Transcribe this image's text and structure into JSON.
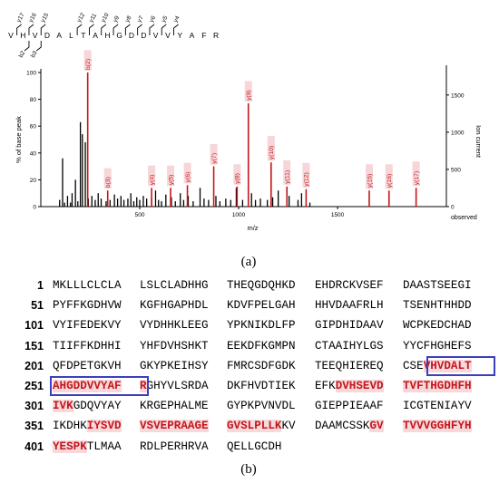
{
  "chart_data": {
    "type": "bar",
    "title": "",
    "peptide": "VHVDALTAHGDDVVYAFR",
    "peptide_letters": [
      "V",
      "H",
      "V",
      "D",
      "A",
      "L",
      "T",
      "A",
      "H",
      "G",
      "D",
      "D",
      "V",
      "V",
      "Y",
      "A",
      "F",
      "R"
    ],
    "y_ion_labels": [
      "y17",
      "y16",
      "y15",
      "y12",
      "y11",
      "y10",
      "y9",
      "y8",
      "y7",
      "y6",
      "y5",
      "y4"
    ],
    "b_ion_labels": [
      "b2",
      "b3"
    ],
    "xlabel": "m/z",
    "ylabel_left": "% of base peak",
    "ylabel_right": "Ion current",
    "right_extra_label": "observed",
    "xlim": [
      0,
      2050
    ],
    "ylim_left": [
      0,
      100
    ],
    "ylim_right": [
      0,
      1900
    ],
    "x_ticks": [
      500,
      1000,
      1500
    ],
    "y_ticks_left": [
      0,
      20,
      40,
      60,
      80,
      100
    ],
    "y_ticks_right": [
      0,
      500,
      1000,
      1500
    ],
    "unannotated_peaks": [
      {
        "x": 95,
        "y": 5
      },
      {
        "x": 110,
        "y": 36
      },
      {
        "x": 120,
        "y": 3
      },
      {
        "x": 135,
        "y": 8
      },
      {
        "x": 150,
        "y": 3
      },
      {
        "x": 158,
        "y": 10
      },
      {
        "x": 175,
        "y": 20
      },
      {
        "x": 187,
        "y": 4
      },
      {
        "x": 200,
        "y": 63
      },
      {
        "x": 210,
        "y": 54
      },
      {
        "x": 225,
        "y": 48
      },
      {
        "x": 240,
        "y": 6
      },
      {
        "x": 258,
        "y": 8
      },
      {
        "x": 275,
        "y": 5
      },
      {
        "x": 290,
        "y": 10
      },
      {
        "x": 305,
        "y": 6
      },
      {
        "x": 330,
        "y": 4
      },
      {
        "x": 350,
        "y": 5
      },
      {
        "x": 372,
        "y": 9
      },
      {
        "x": 388,
        "y": 6
      },
      {
        "x": 405,
        "y": 8
      },
      {
        "x": 420,
        "y": 5
      },
      {
        "x": 440,
        "y": 6
      },
      {
        "x": 455,
        "y": 10
      },
      {
        "x": 470,
        "y": 4
      },
      {
        "x": 485,
        "y": 7
      },
      {
        "x": 500,
        "y": 5
      },
      {
        "x": 518,
        "y": 8
      },
      {
        "x": 535,
        "y": 6
      },
      {
        "x": 560,
        "y": 7
      },
      {
        "x": 580,
        "y": 12
      },
      {
        "x": 595,
        "y": 5
      },
      {
        "x": 610,
        "y": 4
      },
      {
        "x": 632,
        "y": 9
      },
      {
        "x": 660,
        "y": 7
      },
      {
        "x": 680,
        "y": 4
      },
      {
        "x": 705,
        "y": 10
      },
      {
        "x": 722,
        "y": 5
      },
      {
        "x": 745,
        "y": 8
      },
      {
        "x": 770,
        "y": 4
      },
      {
        "x": 805,
        "y": 14
      },
      {
        "x": 825,
        "y": 6
      },
      {
        "x": 848,
        "y": 5
      },
      {
        "x": 885,
        "y": 8
      },
      {
        "x": 905,
        "y": 4
      },
      {
        "x": 935,
        "y": 6
      },
      {
        "x": 960,
        "y": 5
      },
      {
        "x": 988,
        "y": 14
      },
      {
        "x": 1020,
        "y": 5
      },
      {
        "x": 1065,
        "y": 10
      },
      {
        "x": 1085,
        "y": 5
      },
      {
        "x": 1110,
        "y": 6
      },
      {
        "x": 1145,
        "y": 5
      },
      {
        "x": 1172,
        "y": 7
      },
      {
        "x": 1200,
        "y": 12
      },
      {
        "x": 1255,
        "y": 8
      },
      {
        "x": 1300,
        "y": 5
      },
      {
        "x": 1318,
        "y": 10
      },
      {
        "x": 1360,
        "y": 3
      }
    ],
    "annotated_peaks": [
      {
        "label": "b(2)",
        "x": 237,
        "y": 100
      },
      {
        "label": "b(3)",
        "x": 338,
        "y": 12
      },
      {
        "label": "y(4)",
        "x": 560,
        "y": 14
      },
      {
        "label": "y(5)",
        "x": 656,
        "y": 14
      },
      {
        "label": "y(6)",
        "x": 741,
        "y": 16
      },
      {
        "label": "y(7)",
        "x": 874,
        "y": 30
      },
      {
        "label": "y(8)",
        "x": 992,
        "y": 15
      },
      {
        "label": "y(9)",
        "x": 1049,
        "y": 77
      },
      {
        "label": "y(10)",
        "x": 1164,
        "y": 33
      },
      {
        "label": "y(11)",
        "x": 1244,
        "y": 15
      },
      {
        "label": "y(12)",
        "x": 1341,
        "y": 13
      },
      {
        "label": "y(15)",
        "x": 1660,
        "y": 12
      },
      {
        "label": "y(16)",
        "x": 1760,
        "y": 12
      },
      {
        "label": "y(17)",
        "x": 1897,
        "y": 14
      }
    ],
    "panel_label": "(a)"
  },
  "sequence": {
    "panel_label": "(b)",
    "rows": [
      {
        "num": "1",
        "groups": [
          [
            [
              "MKLLLCLCLA",
              0
            ]
          ],
          [
            [
              "LSLCLADHHG",
              0
            ]
          ],
          [
            [
              "THEQGDQHKD",
              0
            ]
          ],
          [
            [
              "EHDRCKVSEF",
              0
            ]
          ],
          [
            [
              "DAASTSEEGI",
              0
            ]
          ]
        ]
      },
      {
        "num": "51",
        "groups": [
          [
            [
              "PYFFKGDHVW",
              0
            ]
          ],
          [
            [
              "KGFHGAPHDL",
              0
            ]
          ],
          [
            [
              "KDVFPELGAH",
              0
            ]
          ],
          [
            [
              "HHVDAAFRLH",
              0
            ]
          ],
          [
            [
              "TSENHTHHDD",
              0
            ]
          ]
        ]
      },
      {
        "num": "101",
        "groups": [
          [
            [
              "VYIFEDEKVY",
              0
            ]
          ],
          [
            [
              "VYDHHKLEEG",
              0
            ]
          ],
          [
            [
              "YPKNIKDLFP",
              0
            ]
          ],
          [
            [
              "GIPDHIDAAV",
              0
            ]
          ],
          [
            [
              "WCPKEDCHAD",
              0
            ]
          ]
        ]
      },
      {
        "num": "151",
        "groups": [
          [
            [
              "TIIFFKDHHI",
              0
            ]
          ],
          [
            [
              "YHFDVHSHKT",
              0
            ]
          ],
          [
            [
              "EEKDFKGMPN",
              0
            ]
          ],
          [
            [
              "CTAAIHYLGS",
              0
            ]
          ],
          [
            [
              "YYCFHGHEFS",
              0
            ]
          ]
        ]
      },
      {
        "num": "201",
        "groups": [
          [
            [
              "QFDPETGKVH",
              0
            ]
          ],
          [
            [
              "GKYPKEIHSY",
              0
            ]
          ],
          [
            [
              "FMRCSDFGDK",
              0
            ]
          ],
          [
            [
              "TEEQHIEREQ",
              0
            ]
          ],
          [
            [
              "CSE",
              0
            ],
            [
              "VHVDALT",
              1
            ]
          ]
        ]
      },
      {
        "num": "251",
        "groups": [
          [
            [
              "AHGDDVVYAF",
              1
            ]
          ],
          [
            [
              "R",
              1
            ],
            [
              "GHYVLSRDA",
              0
            ]
          ],
          [
            [
              "DKFHVDTIEK",
              0
            ]
          ],
          [
            [
              "EFK",
              0
            ],
            [
              "DVHSEVD",
              1
            ]
          ],
          [
            [
              "TVFTHGDHFH",
              1
            ]
          ]
        ]
      },
      {
        "num": "301",
        "groups": [
          [
            [
              "IVK",
              1
            ],
            [
              "GDQVYAY",
              0
            ]
          ],
          [
            [
              "KRGEPHALME",
              0
            ]
          ],
          [
            [
              "GYPKPVNVDL",
              0
            ]
          ],
          [
            [
              "GIEPPIEAAF",
              0
            ]
          ],
          [
            [
              "ICGTENIAYV",
              0
            ]
          ]
        ]
      },
      {
        "num": "351",
        "groups": [
          [
            [
              "IKDHK",
              0
            ],
            [
              "IYSVD",
              1
            ]
          ],
          [
            [
              "VSVEPRAAGE",
              1
            ]
          ],
          [
            [
              "GVSLPLLK",
              1
            ],
            [
              "KV",
              0
            ]
          ],
          [
            [
              "DAAMCSSK",
              0
            ],
            [
              "GV",
              1
            ]
          ],
          [
            [
              "TVVVGGHFYH",
              1
            ]
          ]
        ]
      },
      {
        "num": "401",
        "groups": [
          [
            [
              "YESPK",
              1
            ],
            [
              "TLMAA",
              0
            ]
          ],
          [
            [
              "RDLPERHRVA",
              0
            ]
          ],
          [
            [
              "QELLGCDH",
              0
            ]
          ]
        ]
      }
    ]
  }
}
